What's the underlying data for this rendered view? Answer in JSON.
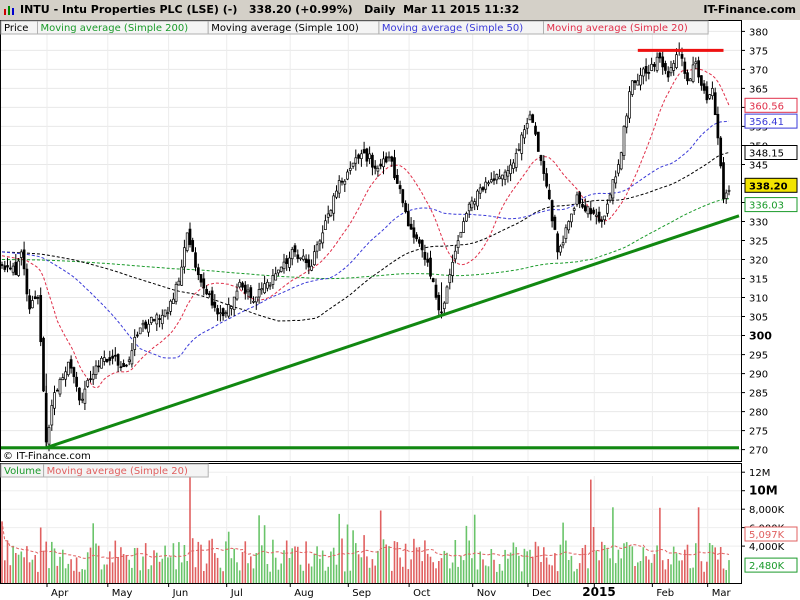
{
  "header": {
    "title": "INTU - Intu Properties PLC (LSE) (-)",
    "quote": "338.20 (+0.99%)",
    "period": "Daily",
    "datetime": "Mar 11 2015 11:32",
    "site": "IT-Finance.com"
  },
  "colors": {
    "sma200": "#1a9a2a",
    "sma100": "#000000",
    "sma50": "#3a3ad8",
    "sma20": "#e0304a",
    "trend": "#118811",
    "resistance": "#ee1111",
    "vol_up": "#6ac46a",
    "vol_down": "#e06060"
  },
  "price_legend": {
    "price": "Price",
    "sma200": "Moving average (Simple 200)",
    "sma100": "Moving average (Simple 100)",
    "sma50": "Moving average (Simple 50)",
    "sma20": "Moving average (Simple 20)"
  },
  "volume_legend": {
    "volume": "Volume",
    "sma20": "Moving average (Simple 20)"
  },
  "watermark": "© IT-Finance.com",
  "badges": {
    "sma20": "360.56",
    "sma50": "356.41",
    "sma100": "348.15",
    "last": "338.20",
    "sma200": "336.03",
    "vol_ma": "5,097K",
    "vol_last": "2,480K"
  },
  "chart_data": {
    "type": "candlestick",
    "title": "INTU - Intu Properties PLC (LSE) (-)",
    "price_axis": {
      "ylim": [
        267,
        383
      ],
      "ticks": [
        270,
        275,
        280,
        285,
        290,
        295,
        300,
        305,
        310,
        315,
        320,
        325,
        330,
        335,
        340,
        345,
        350,
        355,
        360,
        365,
        370,
        375,
        380
      ],
      "bold_tick": 300
    },
    "volume_axis": {
      "ylim": [
        0,
        13000000
      ],
      "ticks": [
        "12M",
        "10M",
        "8,000K",
        "6,000K",
        "4,000K"
      ]
    },
    "x_axis": {
      "labels": [
        "Apr",
        "May",
        "Jun",
        "Jul",
        "Aug",
        "Sep",
        "Oct",
        "Nov",
        "Dec",
        "2015",
        "Feb",
        "Mar"
      ],
      "bold_label": "2015"
    },
    "price_anchors": [
      {
        "d": "2014-03-11",
        "p": 318
      },
      {
        "d": "2014-03-14",
        "p": 316
      },
      {
        "d": "2014-03-18",
        "p": 322
      },
      {
        "d": "2014-03-21",
        "p": 307
      },
      {
        "d": "2014-03-26",
        "p": 310
      },
      {
        "d": "2014-03-31",
        "p": 272
      },
      {
        "d": "2014-04-03",
        "p": 285
      },
      {
        "d": "2014-04-10",
        "p": 293
      },
      {
        "d": "2014-04-16",
        "p": 283
      },
      {
        "d": "2014-04-24",
        "p": 292
      },
      {
        "d": "2014-05-02",
        "p": 294
      },
      {
        "d": "2014-05-09",
        "p": 292
      },
      {
        "d": "2014-05-16",
        "p": 302
      },
      {
        "d": "2014-05-23",
        "p": 304
      },
      {
        "d": "2014-05-30",
        "p": 306
      },
      {
        "d": "2014-06-06",
        "p": 318
      },
      {
        "d": "2014-06-10",
        "p": 327
      },
      {
        "d": "2014-06-16",
        "p": 316
      },
      {
        "d": "2014-06-23",
        "p": 308
      },
      {
        "d": "2014-06-30",
        "p": 306
      },
      {
        "d": "2014-07-07",
        "p": 314
      },
      {
        "d": "2014-07-14",
        "p": 309
      },
      {
        "d": "2014-07-21",
        "p": 314
      },
      {
        "d": "2014-07-28",
        "p": 318
      },
      {
        "d": "2014-08-04",
        "p": 322
      },
      {
        "d": "2014-08-11",
        "p": 318
      },
      {
        "d": "2014-08-18",
        "p": 327
      },
      {
        "d": "2014-08-25",
        "p": 338
      },
      {
        "d": "2014-09-01",
        "p": 344
      },
      {
        "d": "2014-09-08",
        "p": 348
      },
      {
        "d": "2014-09-15",
        "p": 344
      },
      {
        "d": "2014-09-19",
        "p": 347
      },
      {
        "d": "2014-09-24",
        "p": 340
      },
      {
        "d": "2014-10-01",
        "p": 328
      },
      {
        "d": "2014-10-08",
        "p": 320
      },
      {
        "d": "2014-10-16",
        "p": 306
      },
      {
        "d": "2014-10-21",
        "p": 316
      },
      {
        "d": "2014-10-28",
        "p": 330
      },
      {
        "d": "2014-11-04",
        "p": 338
      },
      {
        "d": "2014-11-11",
        "p": 341
      },
      {
        "d": "2014-11-18",
        "p": 343
      },
      {
        "d": "2014-11-25",
        "p": 349
      },
      {
        "d": "2014-12-01",
        "p": 358
      },
      {
        "d": "2014-12-05",
        "p": 346
      },
      {
        "d": "2014-12-10",
        "p": 336
      },
      {
        "d": "2014-12-15",
        "p": 322
      },
      {
        "d": "2014-12-19",
        "p": 330
      },
      {
        "d": "2014-12-24",
        "p": 337
      },
      {
        "d": "2014-12-31",
        "p": 332
      },
      {
        "d": "2015-01-06",
        "p": 330
      },
      {
        "d": "2015-01-09",
        "p": 337
      },
      {
        "d": "2015-01-14",
        "p": 345
      },
      {
        "d": "2015-01-21",
        "p": 367
      },
      {
        "d": "2015-01-28",
        "p": 369
      },
      {
        "d": "2015-02-04",
        "p": 373
      },
      {
        "d": "2015-02-09",
        "p": 368
      },
      {
        "d": "2015-02-13",
        "p": 375
      },
      {
        "d": "2015-02-18",
        "p": 367
      },
      {
        "d": "2015-02-23",
        "p": 372
      },
      {
        "d": "2015-02-27",
        "p": 362
      },
      {
        "d": "2015-03-03",
        "p": 365
      },
      {
        "d": "2015-03-05",
        "p": 352
      },
      {
        "d": "2015-03-09",
        "p": 336
      },
      {
        "d": "2015-03-11",
        "p": 338.2
      }
    ],
    "moving_averages": [
      {
        "name": "Moving average (Simple 200)",
        "period": 200,
        "last": 336.03
      },
      {
        "name": "Moving average (Simple 100)",
        "period": 100,
        "last": 348.15
      },
      {
        "name": "Moving average (Simple 50)",
        "period": 50,
        "last": 356.41
      },
      {
        "name": "Moving average (Simple 20)",
        "period": 20,
        "last": 360.56
      }
    ],
    "annotations": {
      "support_horizontal": 270.5,
      "resistance": {
        "price": 375,
        "from": "2015-01-23",
        "to": "2015-03-09"
      },
      "trendline": {
        "from": {
          "d": "2014-03-31",
          "p": 270.5
        },
        "to": {
          "d": "2015-03-13",
          "p": 331.5
        }
      }
    },
    "volume": {
      "moving_average_last": "5,097K",
      "last": "2,480K",
      "spikes": [
        {
          "d": "2014-06-11",
          "v": 12300000
        },
        {
          "d": "2014-12-31",
          "v": 11200000
        },
        {
          "d": "2015-01-12",
          "v": 8200000
        },
        {
          "d": "2015-02-24",
          "v": 8200000
        }
      ]
    }
  }
}
